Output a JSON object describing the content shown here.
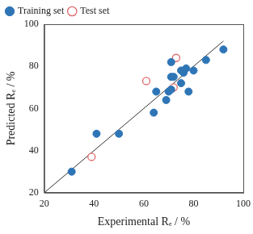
{
  "chart_data": {
    "type": "scatter",
    "x_label": "Experimental Rₑ / %",
    "y_label": "Predicted Rₑ / %",
    "xlim": [
      20,
      100
    ],
    "ylim": [
      20,
      100
    ],
    "xticks": [
      20,
      40,
      60,
      80,
      100
    ],
    "yticks": [
      20,
      40,
      60,
      80,
      100
    ],
    "grid": false,
    "legend": "upper left",
    "series": [
      {
        "name": "Training set",
        "color": "#2e75b6",
        "marker": "circle",
        "x": [
          31,
          41,
          50,
          64,
          65,
          69,
          70,
          71,
          71,
          72,
          71,
          75,
          75,
          76,
          77,
          78,
          80,
          85,
          92
        ],
        "values": [
          30,
          48,
          48,
          58,
          68,
          64,
          68,
          82,
          75,
          75,
          69,
          78,
          72,
          77,
          79,
          68,
          78,
          83,
          88
        ]
      },
      {
        "name": "Test set",
        "color": "#e06666",
        "marker": "open circle",
        "x": [
          39,
          61,
          73,
          72
        ],
        "values": [
          37,
          73,
          84,
          70
        ]
      },
      {
        "type": "line",
        "color": "#333333",
        "line_style": "solid",
        "x": [
          20,
          92
        ],
        "values": [
          20,
          92
        ]
      }
    ]
  }
}
